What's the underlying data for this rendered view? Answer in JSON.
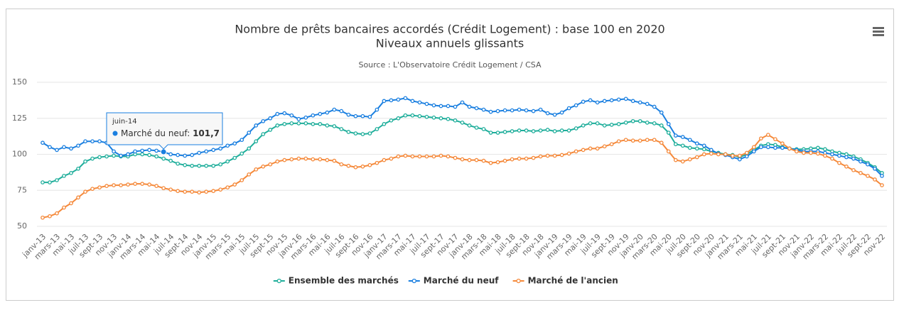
{
  "chart_data": {
    "type": "line",
    "title": "Nombre de prêts bancaires accordés (Crédit Logement) : base 100 en 2020",
    "subtitle": "Niveaux annuels glissants",
    "source": "Source : L'Observatoire Crédit Logement / CSA",
    "categories": [
      "janv-13",
      null,
      "mars-13",
      null,
      "mai-13",
      null,
      "juil-13",
      null,
      "sept-13",
      null,
      "nov-13",
      null,
      "janv-14",
      null,
      "mars-14",
      null,
      "mai-14",
      null,
      "juil-14",
      null,
      "sept-14",
      null,
      "nov-14",
      null,
      "janv-15",
      null,
      "mars-15",
      null,
      "mai-15",
      null,
      "juil-15",
      null,
      "sept-15",
      null,
      "nov-15",
      null,
      "janv-16",
      null,
      "mars-16",
      null,
      "mai-16",
      null,
      "juil-16",
      null,
      "sept-16",
      null,
      "nov-16",
      null,
      "janv-17",
      null,
      "mars-17",
      null,
      "mai-17",
      null,
      "juil-17",
      null,
      "sept-17",
      null,
      "nov-17",
      null,
      "janv-18",
      null,
      "mars-18",
      null,
      "mai-18",
      null,
      "juil-18",
      null,
      "sept-18",
      null,
      "nov-18",
      null,
      "janv-19",
      null,
      "mars-19",
      null,
      "mai-19",
      null,
      "juil-19",
      null,
      "sept-19",
      null,
      "nov-19",
      null,
      "janv-20",
      null,
      "mars-20",
      null,
      "mai-20",
      null,
      "juil-20",
      null,
      "sept-20",
      null,
      "nov-20",
      null,
      "janv-21",
      null,
      "mars-21",
      null,
      "mai-21",
      null,
      "juil-21",
      null,
      "sept-21",
      null,
      "nov-21",
      null,
      "janv-22",
      null,
      "mars-22",
      null,
      "mai-22",
      null,
      "juil-22",
      null,
      "sept-22",
      null,
      "nov-22"
    ],
    "series": [
      {
        "name": "Ensemble des marchés",
        "color": "#1fae9b",
        "values": [
          80.5,
          80.5,
          82,
          85,
          87,
          90,
          95,
          97,
          98,
          98.5,
          99,
          98.5,
          98.5,
          100,
          100,
          99.5,
          98.5,
          97,
          95.5,
          93.5,
          92.5,
          92,
          92,
          92,
          92,
          93,
          95,
          97.5,
          100.5,
          104,
          109,
          114,
          117,
          120,
          121,
          121.5,
          121.5,
          121.5,
          121,
          121,
          120,
          119.5,
          117.5,
          115.5,
          114.5,
          114,
          114.5,
          117.5,
          121,
          123.5,
          125,
          127,
          127,
          126.5,
          126,
          125.5,
          125,
          124.5,
          123.5,
          122,
          120,
          118.5,
          117.5,
          115,
          115,
          115.5,
          116,
          116.5,
          116.5,
          116,
          116.5,
          117,
          116,
          116.5,
          116.5,
          118,
          120,
          121.5,
          121.5,
          120,
          120.5,
          121,
          122,
          123,
          123,
          122,
          121.5,
          120,
          115,
          107,
          106,
          104.5,
          104,
          103.5,
          102,
          101,
          100,
          99.5,
          98,
          100,
          103,
          106,
          107,
          106.5,
          105,
          104,
          103.5,
          103.5,
          104,
          104.5,
          103.5,
          102,
          101,
          100,
          98.5,
          96.5,
          94,
          91,
          87
        ]
      },
      {
        "name": "Marché du neuf",
        "color": "#1a7fe0",
        "values": [
          108,
          105,
          103,
          105,
          104,
          106,
          109,
          109,
          109,
          108,
          102,
          99,
          100,
          102,
          102.5,
          103,
          102.5,
          101.7,
          100,
          99.5,
          99,
          99.5,
          101,
          102,
          103,
          104,
          106,
          107.5,
          110,
          115,
          120,
          123,
          125,
          128,
          128.5,
          127,
          124.5,
          125.5,
          127,
          128,
          129,
          131,
          130,
          127.5,
          126.5,
          126.5,
          126,
          131,
          137,
          137.5,
          138,
          139,
          137,
          136,
          135,
          134,
          133.5,
          133.5,
          133,
          136,
          133,
          132,
          131,
          129.5,
          130,
          130.5,
          130.5,
          131,
          130.5,
          130,
          131,
          128.5,
          127.5,
          129,
          132,
          134,
          136.5,
          137.5,
          136,
          137,
          137.5,
          138,
          138.5,
          137,
          136,
          135,
          133,
          129,
          121,
          113,
          112,
          110,
          107.5,
          106,
          103,
          100.5,
          99.5,
          98,
          96.5,
          98.5,
          102,
          105,
          105,
          104.5,
          104.5,
          104,
          103,
          102,
          102,
          102,
          101,
          100,
          99,
          98,
          97,
          95,
          93,
          90,
          85
        ]
      },
      {
        "name": "Marché de l'ancien",
        "color": "#f5893a",
        "values": [
          56,
          57,
          59,
          63,
          66,
          70,
          74,
          76,
          77,
          78,
          78.5,
          78.5,
          79,
          79.5,
          79.5,
          79,
          78,
          76.5,
          75.5,
          74.5,
          74,
          74,
          73.5,
          74,
          74.5,
          75.5,
          77,
          79,
          82,
          86,
          89.5,
          91.5,
          93,
          95,
          96,
          96.5,
          97,
          97,
          96.5,
          96.5,
          96,
          95.5,
          93,
          92,
          91,
          91.5,
          92.5,
          94,
          96,
          97,
          98.5,
          99,
          98.5,
          98.5,
          98.5,
          98.5,
          99,
          98.5,
          97.5,
          96.5,
          96,
          96,
          95.5,
          94,
          94.5,
          95.5,
          96.5,
          97,
          97,
          97.5,
          98.5,
          99,
          99,
          99.5,
          100.5,
          102,
          103,
          104,
          104,
          105.5,
          107,
          109,
          110,
          109.5,
          109.5,
          110,
          110,
          108,
          102,
          96,
          95,
          96.5,
          98,
          100,
          100.5,
          100,
          100,
          99,
          99,
          101,
          105,
          111,
          113.5,
          110.5,
          107.5,
          104,
          102,
          101,
          101,
          100.5,
          99,
          97,
          94,
          91.5,
          89,
          87,
          85,
          82.5,
          78.5
        ]
      }
    ],
    "ylim": [
      50,
      150
    ],
    "yticks": [
      50,
      75,
      100,
      125,
      150
    ],
    "grid": true,
    "legend": "bottom",
    "tooltip": {
      "header": "juin-14",
      "series": "Marché du neuf",
      "value": "101,7"
    }
  }
}
